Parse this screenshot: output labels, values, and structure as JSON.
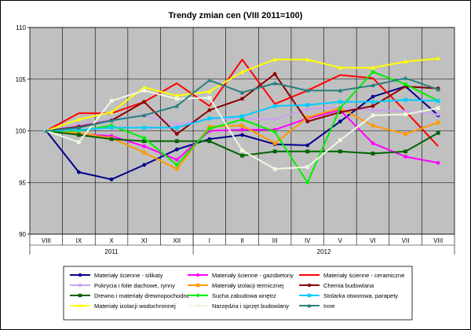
{
  "chart_data": {
    "type": "line",
    "title": "Trendy zmian cen (VIII 2011=100)",
    "x": [
      "VIII",
      "IX",
      "X",
      "XI",
      "XII",
      "I",
      "II",
      "III",
      "IV",
      "V",
      "VI",
      "VII",
      "VIII"
    ],
    "year_groups": [
      {
        "label": "2011",
        "start": 0,
        "end": 4
      },
      {
        "label": "2012",
        "start": 5,
        "end": 12
      }
    ],
    "ylim": [
      90,
      110
    ],
    "yticks": [
      90,
      95,
      100,
      105,
      110
    ],
    "grid": true,
    "legend_position": "bottom",
    "series": [
      {
        "name": "Materiały ścienne - silikaty",
        "color": "#00008b",
        "marker": "circle",
        "values": [
          100,
          96.0,
          95.3,
          96.7,
          98.2,
          99.2,
          99.6,
          98.7,
          98.6,
          100.9,
          103.3,
          104.3,
          101.5
        ]
      },
      {
        "name": "Materiały ścienne - gazobetony",
        "color": "#ff00ff",
        "marker": "circle",
        "values": [
          100,
          99.7,
          99.5,
          98.5,
          97.2,
          100.0,
          100.1,
          100.1,
          101.2,
          102.0,
          98.8,
          97.5,
          96.9
        ]
      },
      {
        "name": "Materiały ścienne - ceramiczne",
        "color": "#ff0000",
        "marker": "none",
        "values": [
          100,
          101.7,
          101.7,
          102.8,
          104.6,
          102.4,
          106.9,
          102.6,
          103.9,
          105.4,
          105.1,
          101.9,
          98.5
        ]
      },
      {
        "name": "Pokrycia i folie dachowe, rynny",
        "color": "#c8a2f0",
        "marker": "circle",
        "values": [
          100,
          100.6,
          101.1,
          101.5,
          100.6,
          101.2,
          101.2,
          101.1,
          102.1,
          102.3,
          102.0,
          101.9,
          101.6
        ]
      },
      {
        "name": "Materiały izolacji termicznej",
        "color": "#ff9900",
        "marker": "square",
        "values": [
          100,
          99.8,
          99.3,
          97.9,
          96.3,
          100.4,
          100.5,
          98.8,
          101.3,
          102.2,
          100.5,
          99.7,
          100.8
        ]
      },
      {
        "name": "Chemia budowlana",
        "color": "#8b0000",
        "marker": "circle",
        "values": [
          100,
          100.4,
          101.0,
          102.8,
          99.7,
          102.0,
          103.1,
          105.5,
          100.9,
          101.8,
          102.4,
          104.3,
          104.1
        ]
      },
      {
        "name": "Drewno i materiały drewnopochodne",
        "color": "#006400",
        "marker": "square",
        "values": [
          100,
          99.6,
          99.2,
          99.0,
          99.0,
          99.0,
          97.6,
          98.0,
          98.0,
          98.0,
          97.8,
          98.0,
          99.8
        ]
      },
      {
        "name": "Sucha zabudowa wnętrz",
        "color": "#00ee00",
        "marker": "circle",
        "values": [
          100,
          100.0,
          100.5,
          99.3,
          96.7,
          100.2,
          101.1,
          99.9,
          95.0,
          102.2,
          105.7,
          104.5,
          102.9
        ]
      },
      {
        "name": "Stolarka otworowa, parapety",
        "color": "#00ccff",
        "marker": "square",
        "values": [
          100,
          100.1,
          100.3,
          100.3,
          100.3,
          101.2,
          101.4,
          102.4,
          102.5,
          102.8,
          102.8,
          103.0,
          102.9
        ]
      },
      {
        "name": "Materiały izolacji wodochronnej",
        "color": "#ffff00",
        "marker": "triangle",
        "values": [
          100,
          101.1,
          101.8,
          104.2,
          103.4,
          103.8,
          105.7,
          106.9,
          106.9,
          106.1,
          106.1,
          106.7,
          107.0
        ]
      },
      {
        "name": "Narzędzia i sprzęt budowlany",
        "color": "#f0f8e0",
        "marker": "square",
        "values": [
          100,
          98.9,
          102.9,
          103.9,
          103.1,
          103.2,
          98.1,
          96.3,
          96.5,
          99.1,
          101.5,
          101.6,
          102.2
        ]
      },
      {
        "name": "Inne",
        "color": "#2a7f7f",
        "marker": "triangle",
        "values": [
          100,
          100.3,
          101.0,
          101.5,
          102.4,
          104.9,
          103.7,
          104.6,
          103.9,
          103.9,
          104.4,
          105.1,
          104.0
        ]
      }
    ]
  }
}
